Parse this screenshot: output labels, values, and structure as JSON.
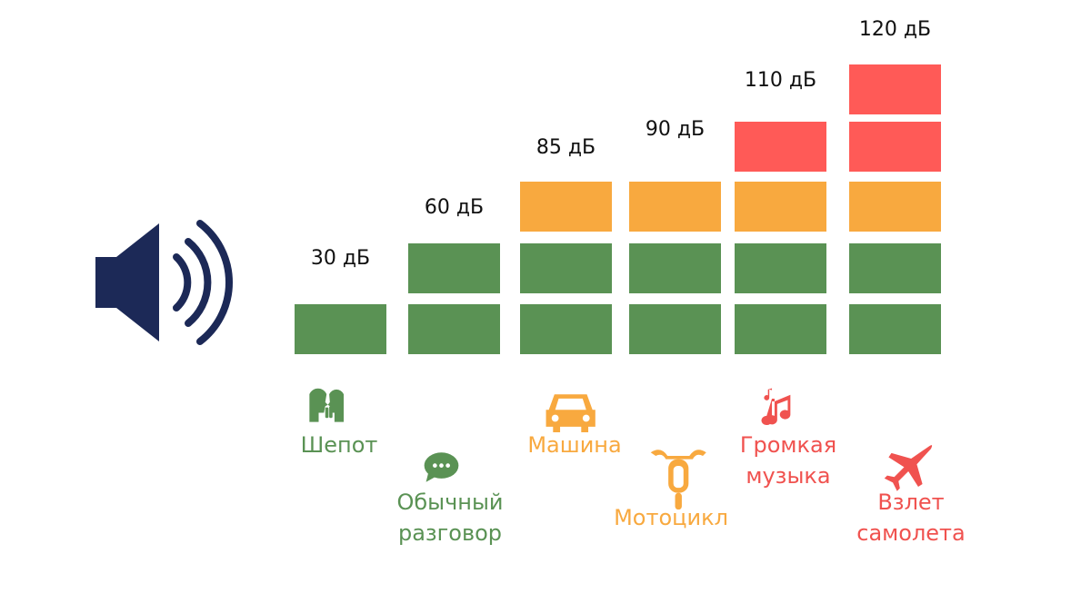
{
  "chart_data": {
    "type": "bar",
    "unit": "дБ",
    "categories": [
      "Шепот",
      "Обычный разговор",
      "Машина",
      "Мотоцикл",
      "Громкая музыка",
      "Взлет самолета"
    ],
    "values": [
      30,
      60,
      85,
      90,
      110,
      120
    ],
    "value_labels": [
      "30 дБ",
      "60 дБ",
      "85 дБ",
      "90 дБ",
      "110 дБ",
      "120 дБ"
    ],
    "segments_per_bar": [
      1,
      2,
      3,
      3,
      4,
      5
    ],
    "category_lines": [
      [
        "Шепот"
      ],
      [
        "Обычный",
        "разговор"
      ],
      [
        "Машина"
      ],
      [
        "Мотоцикл"
      ],
      [
        "Громкая",
        "музыка"
      ],
      [
        "Взлет",
        "самолета"
      ]
    ],
    "icons": [
      "whisper-icon",
      "speech-bubble-icon",
      "car-icon",
      "motorcycle-icon",
      "music-notes-icon",
      "airplane-icon"
    ],
    "segment_colors": [
      "#5a9254",
      "#5a9254",
      "#f8a93f",
      "#ff5a57",
      "#ff5a57"
    ],
    "label_colors": [
      "#5a9254",
      "#5a9254",
      "#f8a93f",
      "#f8a93f",
      "#f0524f",
      "#f0524f"
    ],
    "title": "",
    "xlabel": "",
    "ylabel": ""
  },
  "speaker_icon": "speaker-volume-icon",
  "speaker_color": "#1c2957"
}
